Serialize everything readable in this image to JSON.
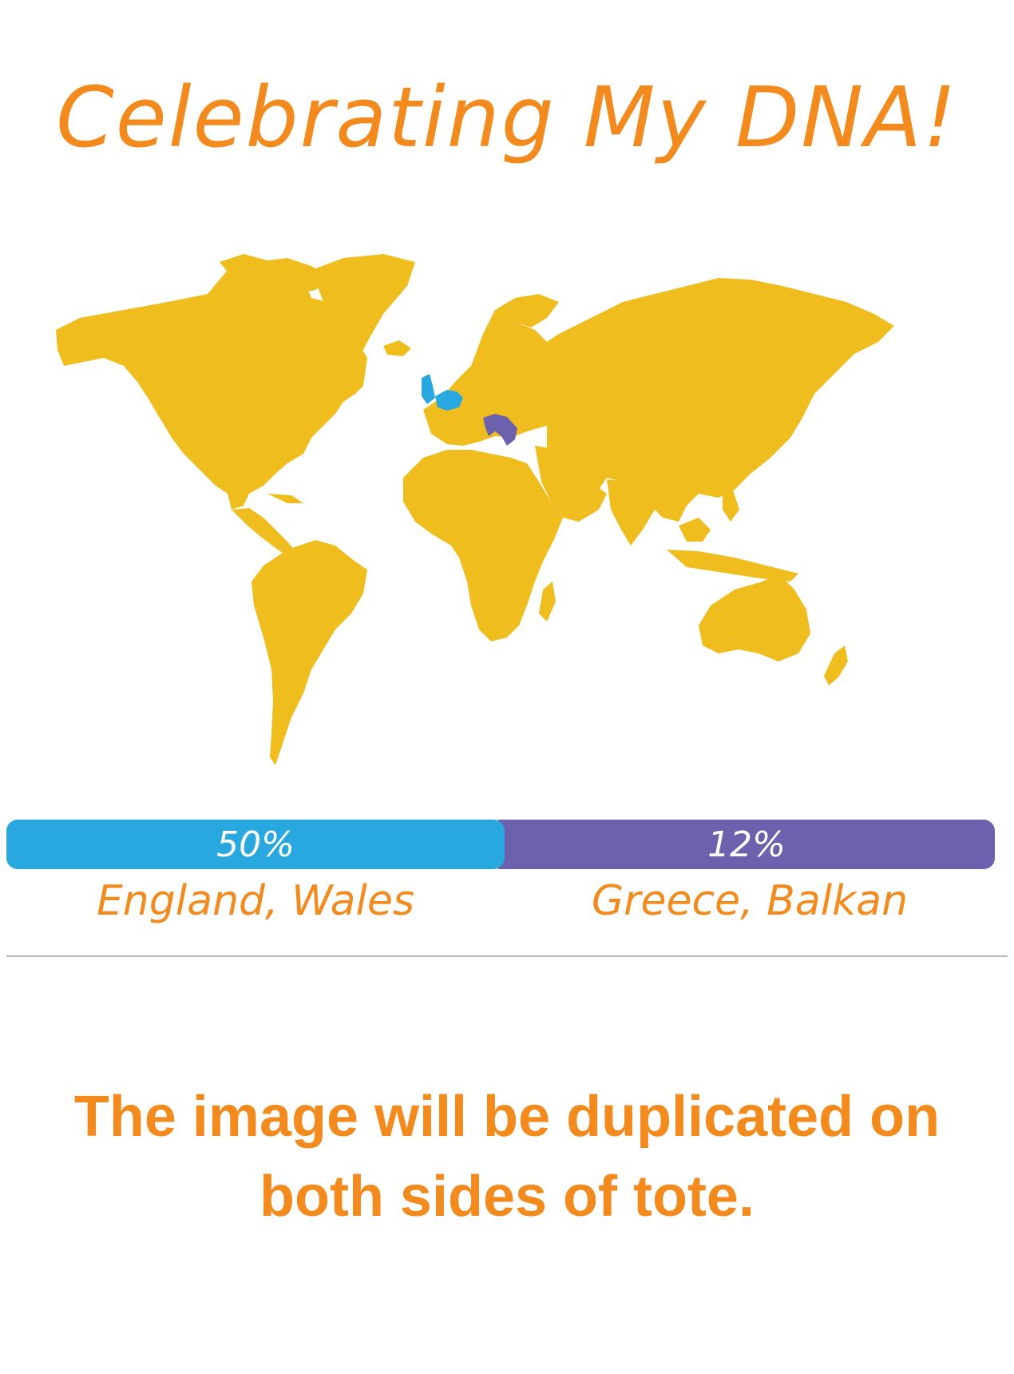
{
  "title": "Celebrating My DNA!",
  "colors": {
    "accent_orange": "#f28a1e",
    "map_land": "#f0bd1f",
    "england_wales_blue": "#29a8e0",
    "greece_balkan_purple": "#6b61ac",
    "divider_gray": "#b8b8b8",
    "background": "#ffffff"
  },
  "map": {
    "icon": "world-map-icon",
    "highlighted_regions": [
      {
        "name": "England, Wales",
        "color": "#29a8e0"
      },
      {
        "name": "Greece, Balkan",
        "color": "#6b61ac"
      }
    ]
  },
  "ancestry": [
    {
      "percent_label": "50%",
      "percent": 50,
      "region": "England, Wales",
      "color": "#29a8e0"
    },
    {
      "percent_label": "12%",
      "percent": 12,
      "region": "Greece, Balkan",
      "color": "#6b61ac"
    }
  ],
  "notice": {
    "line1": "The image will be duplicated on",
    "line2": "both sides of tote."
  }
}
